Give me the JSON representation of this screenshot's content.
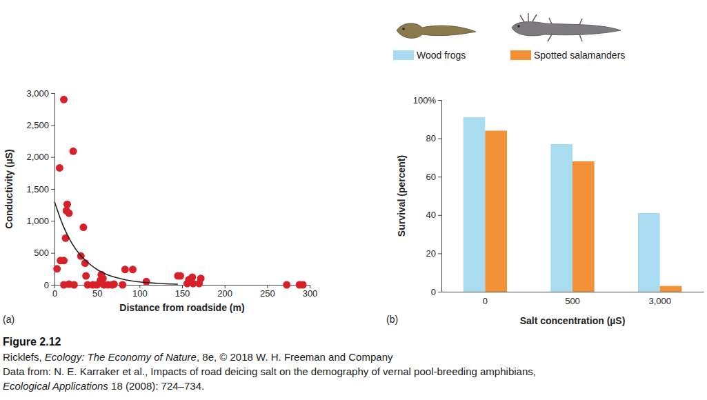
{
  "chart_data": [
    {
      "type": "scatter",
      "panel_label": "(a)",
      "x_label": "Distance from roadside (m)",
      "y_label": "Conductivity (µS)",
      "xlim": [
        0,
        300
      ],
      "xticks": [
        0,
        50,
        100,
        150,
        200,
        250,
        300
      ],
      "ylim": [
        0,
        3000
      ],
      "yticks": [
        0,
        500,
        {
          "value": 1000,
          "label": "1,000"
        },
        {
          "value": 1500,
          "label": "1,500"
        },
        {
          "value": 2000,
          "label": "2,000"
        },
        {
          "value": 2500,
          "label": "2,500"
        },
        {
          "value": 3000,
          "label": "3,000"
        }
      ],
      "series": [
        {
          "type": "scatter",
          "marker": "circle",
          "color": "#d6202a",
          "x": [
            3,
            6,
            7,
            11,
            11,
            11,
            13,
            14,
            15,
            17,
            17,
            22,
            23,
            31,
            34,
            36,
            37,
            39,
            45,
            50,
            54,
            55,
            57,
            58,
            63,
            68,
            70,
            80,
            83,
            92,
            108,
            145,
            148,
            156,
            158,
            162,
            163,
            170,
            172,
            273,
            288,
            292
          ],
          "values": [
            250,
            1830,
            380,
            380,
            2900,
            0,
            730,
            1160,
            1260,
            1120,
            10,
            2090,
            0,
            450,
            900,
            340,
            140,
            0,
            0,
            0,
            70,
            160,
            100,
            0,
            0,
            0,
            10,
            0,
            240,
            240,
            50,
            140,
            140,
            20,
            80,
            120,
            20,
            20,
            100,
            0,
            0,
            0
          ]
        },
        {
          "type": "line",
          "line_style": "solid",
          "color": "#222222",
          "x": [
            0,
            10,
            20,
            30,
            40,
            50,
            60,
            80,
            100,
            120,
            145
          ],
          "values": [
            1300,
            930,
            660,
            470,
            340,
            240,
            170,
            90,
            45,
            25,
            10
          ]
        }
      ]
    },
    {
      "type": "bar",
      "panel_label": "(b)",
      "x_label": "Salt concentration (µS)",
      "y_label": "Survival (percent)",
      "categories": [
        "0",
        "500",
        "3,000"
      ],
      "ylim": [
        0,
        100
      ],
      "yticks": [
        0,
        20,
        40,
        60,
        80,
        {
          "value": 100,
          "label": "100%"
        }
      ],
      "legend": "top",
      "series": [
        {
          "name": "Wood frogs",
          "color": "#a9dcf1",
          "values": [
            91,
            77,
            41
          ]
        },
        {
          "name": "Spotted salamanders",
          "color": "#f39137",
          "values": [
            84,
            68,
            3
          ]
        }
      ]
    }
  ],
  "caption": {
    "figure": "Figure 2.12",
    "lines": [
      [
        {
          "text": "Ricklefs, ",
          "italic": false
        },
        {
          "text": "Ecology: The Economy of Nature",
          "italic": true
        },
        {
          "text": ", 8e, © 2018 W. H. Freeman and Company",
          "italic": false
        }
      ],
      [
        {
          "text": "Data from: N. E. Karraker et al., Impacts of road deicing salt on the demography of vernal pool-breeding amphibians,",
          "italic": false
        }
      ],
      [
        {
          "text": "Ecological Applications",
          "italic": true
        },
        {
          "text": " 18 (2008): 724–734.",
          "italic": false
        }
      ]
    ]
  }
}
